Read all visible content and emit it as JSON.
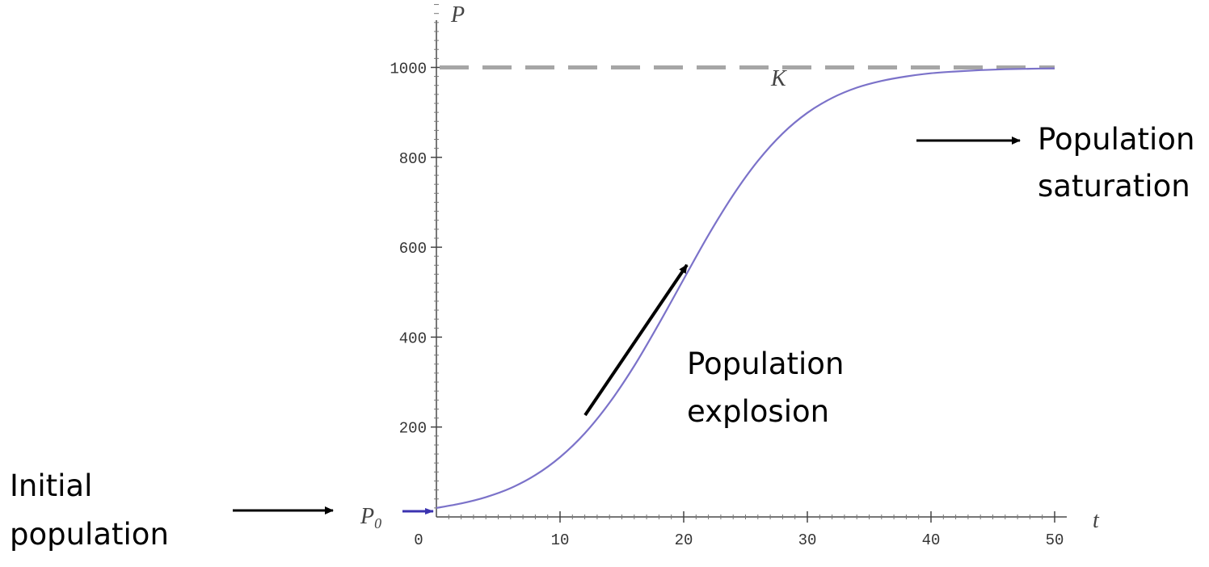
{
  "chart_data": {
    "type": "line",
    "xlabel": "t",
    "ylabel": "P",
    "x_ticks": [
      0,
      10,
      20,
      30,
      40,
      50
    ],
    "y_ticks": [
      200,
      400,
      600,
      800,
      1000
    ],
    "xlim": [
      0,
      50
    ],
    "ylim": [
      0,
      1150
    ],
    "carrying_capacity": {
      "label": "K",
      "value": 1000
    },
    "initial_label": "P",
    "initial_label_sub": "0",
    "series": [
      {
        "color": "#7b72c9",
        "x": [
          0,
          2,
          4,
          6,
          8,
          10,
          12,
          14,
          16,
          18,
          20,
          22,
          24,
          26,
          28,
          30,
          32,
          34,
          36,
          38,
          40,
          42,
          44,
          46,
          48,
          50
        ],
        "y": [
          20,
          30,
          44,
          64,
          93,
          133,
          186,
          254,
          336,
          430,
          529,
          627,
          716,
          792,
          853,
          899,
          932,
          955,
          970,
          980,
          987,
          991,
          994,
          996,
          997,
          998
        ]
      }
    ],
    "annotations": {
      "initial": [
        "Initial",
        "population"
      ],
      "explosion": [
        "Population",
        "explosion"
      ],
      "saturation": [
        "Population",
        "saturation"
      ]
    },
    "grid": false,
    "legend": "none"
  }
}
